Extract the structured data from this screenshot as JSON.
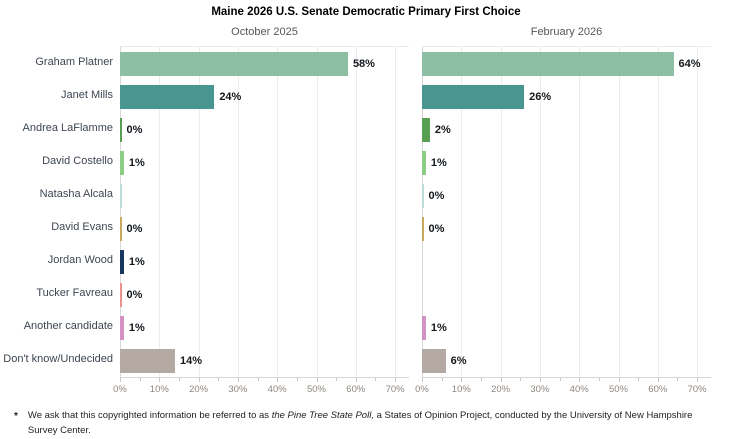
{
  "title": "Maine 2026 U.S. Senate Democratic Primary First Choice",
  "chart_data": {
    "type": "bar",
    "orientation": "horizontal",
    "title": "Maine 2026 U.S. Senate Democratic Primary First Choice",
    "categories": [
      "Graham Platner",
      "Janet Mills",
      "Andrea LaFlamme",
      "David Costello",
      "Natasha Alcala",
      "David Evans",
      "Jordan Wood",
      "Tucker Favreau",
      "Another candidate",
      "Don't know/Undecided"
    ],
    "category_keys": [
      "graham-platner",
      "janet-mills",
      "andrea-laflamme",
      "david-costello",
      "natasha-alcala",
      "david-evans",
      "jordan-wood",
      "tucker-favreau",
      "another-candidate",
      "dont-know-undecided"
    ],
    "series": [
      {
        "name": "October 2025",
        "values": [
          58,
          24,
          0,
          1,
          0,
          0,
          1,
          0,
          1,
          14
        ],
        "labels": [
          "58%",
          "24%",
          "0%",
          "1%",
          "",
          "0%",
          "1%",
          "0%",
          "1%",
          "14%"
        ]
      },
      {
        "name": "February 2026",
        "values": [
          64,
          26,
          2,
          1,
          0,
          0,
          null,
          null,
          1,
          6
        ],
        "labels": [
          "64%",
          "26%",
          "2%",
          "1%",
          "0%",
          "0%",
          "",
          "",
          "1%",
          "6%"
        ]
      }
    ],
    "bar_colors": [
      "#8CBFA4",
      "#48968F",
      "#57A053",
      "#8BCD85",
      "#BCDCD8",
      "#C9A95D",
      "#17375E",
      "#E8938C",
      "#D492C4",
      "#B3A8A2"
    ],
    "xlim": [
      0,
      73
    ],
    "x_tick_labels": [
      "0%",
      "10%",
      "20%",
      "30%",
      "40%",
      "50%",
      "60%",
      "70%"
    ],
    "grid": true,
    "legend": "none",
    "value_suffix": "%"
  },
  "footnote": {
    "marker": "*",
    "text_1": "We ask that this copyrighted information be referred to as ",
    "text_italic": "the Pine Tree State Poll,",
    "text_2": " a States of Opinion Project, conducted by the University of New Hampshire Survey Center."
  }
}
